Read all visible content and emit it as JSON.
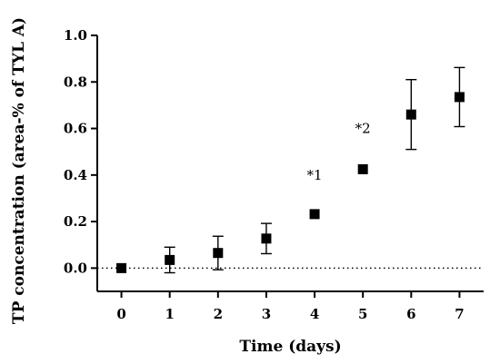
{
  "chart_data": {
    "type": "scatter",
    "xlabel": "Time (days)",
    "ylabel": "TP concentration (area-% of TYL A)",
    "x": [
      0,
      1,
      2,
      3,
      4,
      5,
      6,
      7
    ],
    "x_tick_labels": [
      "0",
      "1",
      "2",
      "3",
      "4",
      "5",
      "6",
      "7"
    ],
    "y_tick_labels": [
      "0.0",
      "0.2",
      "0.4",
      "0.6",
      "0.8",
      "1.0"
    ],
    "xlim": [
      -0.5,
      7.5
    ],
    "ylim": [
      -0.1,
      1.0
    ],
    "y_ticks": [
      0.0,
      0.2,
      0.4,
      0.6,
      0.8,
      1.0
    ],
    "series": [
      {
        "values": [
          0.0,
          0.035,
          0.065,
          0.127,
          0.232,
          0.425,
          0.66,
          0.735
        ],
        "error": [
          0.0,
          0.055,
          0.072,
          0.065,
          0.0,
          0.0,
          0.15,
          0.127
        ],
        "marker": "square",
        "color": "#000000"
      }
    ],
    "reference_line": {
      "y": 0.0,
      "style": "dotted"
    },
    "annotations": [
      {
        "text": "*1",
        "x": 4,
        "y": 0.38
      },
      {
        "text": "*2",
        "x": 5,
        "y": 0.58
      }
    ],
    "grid": false,
    "legend": "none"
  }
}
